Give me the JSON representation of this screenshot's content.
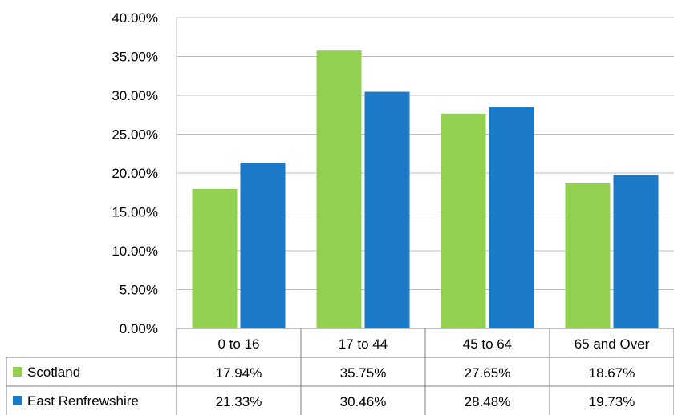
{
  "chart_data": {
    "type": "bar",
    "categories": [
      "0 to 16",
      "17 to 44",
      "45 to 64",
      "65 and Over"
    ],
    "series": [
      {
        "name": "Scotland",
        "values": [
          17.94,
          35.75,
          27.65,
          18.67
        ],
        "labels": [
          "17.94%",
          "35.75%",
          "27.65%",
          "18.67%"
        ],
        "color": "#92d050"
      },
      {
        "name": "East Renfrewshire",
        "values": [
          21.33,
          30.46,
          28.48,
          19.73
        ],
        "labels": [
          "21.33%",
          "30.46%",
          "28.48%",
          "19.73%"
        ],
        "color": "#1a7ac8"
      }
    ],
    "yticks": [
      "0.00%",
      "5.00%",
      "10.00%",
      "15.00%",
      "20.00%",
      "25.00%",
      "30.00%",
      "35.00%",
      "40.00%"
    ],
    "ylim": [
      0,
      40
    ],
    "grid": true,
    "legend": "data-table"
  }
}
